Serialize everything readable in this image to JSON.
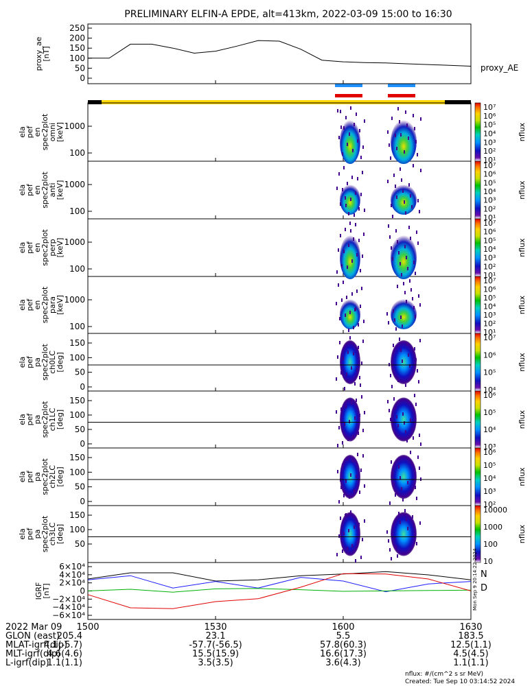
{
  "title": "PRELIMINARY ELFIN-A EPDE, alt=413km, 2022-03-09 15:00 to 16:30",
  "panels": [
    {
      "ylabel": [
        "proxy_ae",
        "[nT]"
      ],
      "ticks": [
        "250",
        "200",
        "150",
        "100",
        "50",
        "0"
      ],
      "right_label": "proxy_AE"
    },
    {
      "ylabel": [
        "ela",
        "pef",
        "en",
        "spec2plot",
        "omni",
        "[keV]"
      ],
      "ticks": [
        "1000",
        "100"
      ],
      "cbar_label": "nflux"
    },
    {
      "ylabel": [
        "ela",
        "pef",
        "en",
        "spec2plot",
        "anti",
        "[keV]"
      ],
      "ticks": [
        "1000",
        "100"
      ],
      "cbar_label": "nflux"
    },
    {
      "ylabel": [
        "ela",
        "pef",
        "en",
        "spec2plot",
        "perp",
        "[keV]"
      ],
      "ticks": [
        "1000",
        "100"
      ],
      "cbar_label": "nflux"
    },
    {
      "ylabel": [
        "ela",
        "pef",
        "en",
        "spec2plot",
        "para",
        "[keV]"
      ],
      "ticks": [
        "1000",
        "100"
      ],
      "cbar_label": "nflux"
    },
    {
      "ylabel": [
        "ela",
        "pef",
        "pa",
        "spec2plot",
        "ch0LC",
        "[deg]"
      ],
      "ticks": [
        "150",
        "100",
        "50",
        "0"
      ],
      "cbar_label": "nflux"
    },
    {
      "ylabel": [
        "ela",
        "pef",
        "pa",
        "spec2plot",
        "ch1LC",
        "[deg]"
      ],
      "ticks": [
        "150",
        "100",
        "50",
        "0"
      ],
      "cbar_label": "nflux"
    },
    {
      "ylabel": [
        "ela",
        "pef",
        "pa",
        "spec2plot",
        "ch2LC",
        "[deg]"
      ],
      "ticks": [
        "150",
        "100",
        "50",
        "0"
      ],
      "cbar_label": "nflux"
    },
    {
      "ylabel": [
        "ela",
        "pef",
        "pa",
        "spec2plot",
        "ch3LC",
        "[deg]"
      ],
      "ticks": [
        "150",
        "100",
        "50"
      ],
      "cbar_label": "nflux"
    },
    {
      "ylabel": [
        "IGRF",
        "[nT]"
      ],
      "ticks": [
        "6×10⁴",
        "4×10⁴",
        "2×10⁴",
        "0",
        "−2×10⁴",
        "−4×10⁴",
        "−6×10⁴"
      ],
      "right_labels": [
        "N",
        "D"
      ]
    }
  ],
  "colorbars": [
    [
      "10⁷",
      "10⁶",
      "10⁵",
      "10⁴",
      "10³",
      "10²",
      "10¹"
    ],
    [
      "10⁷",
      "10⁶",
      "10⁵",
      "10⁴",
      "10³",
      "10²",
      "10¹"
    ],
    [
      "10⁷",
      "10⁶",
      "10⁵",
      "10⁴",
      "10³",
      "10²",
      "10¹"
    ],
    [
      "10⁷",
      "10⁶",
      "10⁵",
      "10⁴",
      "10³",
      "10²",
      "10¹"
    ],
    [
      "10⁷",
      "10⁶",
      "10⁵",
      "10⁴"
    ],
    [
      "10⁶",
      "10⁵",
      "10⁴",
      "10³"
    ],
    [
      "10⁶",
      "10⁵",
      "10⁴",
      "10³",
      "10²"
    ],
    [
      "10000",
      "1000",
      "100",
      "10"
    ]
  ],
  "colors": {
    "N": "#1a1aff",
    "D": "#e00000",
    "sunlight": "#ffd800",
    "science_blue": "#1e90ff",
    "science_red": "#e00000"
  },
  "bottom_table": [
    [
      "2022 Mar 09",
      "1500",
      "1530",
      "1600",
      "1630"
    ],
    [
      "GLON (east)",
      "205.4",
      "23.1",
      "5.5",
      "183.5"
    ],
    [
      "MLAT-igrf(dip)",
      "4.1(-5.7)",
      "-57.7(-56.5)",
      "57.8(60.3)",
      "12.5(1.1)"
    ],
    [
      "MLT-igrf(dip)",
      "4.6(4.6)",
      "15.5(15.9)",
      "16.6(17.3)",
      "4.5(4.5)"
    ],
    [
      "L-igrf(dip)",
      "1.1(1.1)",
      "3.5(3.5)",
      "3.6(4.3)",
      "1.1(1.1)"
    ]
  ],
  "footer_unit": "nflux: #/(cm^2 s sr MeV)",
  "footer_created": "Created: Tue Sep 10 03:14:52 2024",
  "side_stamp": "Mon Sep 9 20:14:22 2024",
  "chart_data": [
    {
      "type": "line",
      "title": "PRELIMINARY ELFIN-A EPDE, alt=413km, 2022-03-09 15:00 to 16:30",
      "ylabel": "proxy_ae [nT]",
      "ylim": [
        0,
        250
      ],
      "x": [
        "15:00",
        "15:05",
        "15:10",
        "15:15",
        "15:20",
        "15:25",
        "15:30",
        "15:35",
        "15:40",
        "15:45",
        "15:50",
        "15:55",
        "16:00",
        "16:05",
        "16:10",
        "16:15",
        "16:20",
        "16:25",
        "16:30"
      ],
      "series": [
        {
          "name": "proxy_AE",
          "values": [
            100,
            100,
            170,
            170,
            150,
            125,
            135,
            160,
            188,
            185,
            145,
            90,
            82,
            78,
            76,
            72,
            68,
            64,
            60
          ]
        }
      ]
    },
    {
      "type": "line",
      "ylabel": "IGRF [nT]",
      "ylim": [
        -60000,
        60000
      ],
      "x": [
        "15:00",
        "15:10",
        "15:20",
        "15:30",
        "15:40",
        "15:50",
        "16:00",
        "16:10",
        "16:20",
        "16:30"
      ],
      "series": [
        {
          "values": [
            30000,
            45000,
            45000,
            25000,
            28000,
            38000,
            42000,
            48000,
            40000,
            28000
          ]
        },
        {
          "name": "N",
          "values": [
            28000,
            38000,
            8000,
            24000,
            8000,
            34000,
            25000,
            -1000,
            18000,
            24000
          ]
        },
        {
          "values": [
            1000,
            5000,
            -2000,
            6000,
            7000,
            4000,
            0,
            1000,
            2000,
            3000
          ]
        },
        {
          "name": "D",
          "values": [
            -8000,
            -40000,
            -42000,
            -25000,
            -18000,
            10000,
            43000,
            42000,
            30000,
            1000
          ]
        }
      ]
    }
  ]
}
